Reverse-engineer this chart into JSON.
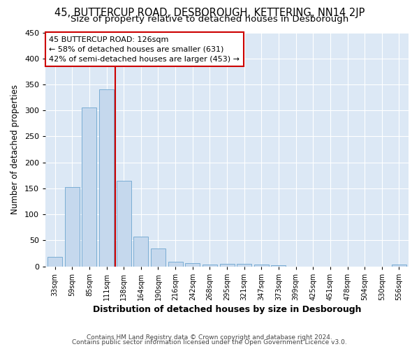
{
  "title1": "45, BUTTERCUP ROAD, DESBOROUGH, KETTERING, NN14 2JP",
  "title2": "Size of property relative to detached houses in Desborough",
  "xlabel": "Distribution of detached houses by size in Desborough",
  "ylabel": "Number of detached properties",
  "footer1": "Contains HM Land Registry data © Crown copyright and database right 2024.",
  "footer2": "Contains public sector information licensed under the Open Government Licence v3.0.",
  "categories": [
    "33sqm",
    "59sqm",
    "85sqm",
    "111sqm",
    "138sqm",
    "164sqm",
    "190sqm",
    "216sqm",
    "242sqm",
    "268sqm",
    "295sqm",
    "321sqm",
    "347sqm",
    "373sqm",
    "399sqm",
    "425sqm",
    "451sqm",
    "478sqm",
    "504sqm",
    "530sqm",
    "556sqm"
  ],
  "values": [
    18,
    152,
    306,
    341,
    165,
    57,
    34,
    9,
    6,
    3,
    5,
    5,
    4,
    2,
    0,
    0,
    0,
    0,
    0,
    0,
    4
  ],
  "bar_color": "#c5d8ed",
  "bar_edge_color": "#7aadd4",
  "vline_x": 3.5,
  "vline_color": "#cc0000",
  "annotation_line1": "45 BUTTERCUP ROAD: 126sqm",
  "annotation_line2": "← 58% of detached houses are smaller (631)",
  "annotation_line3": "42% of semi-detached houses are larger (453) →",
  "annotation_box_color": "#ffffff",
  "annotation_box_edge_color": "#cc0000",
  "ylim": [
    0,
    450
  ],
  "yticks": [
    0,
    50,
    100,
    150,
    200,
    250,
    300,
    350,
    400,
    450
  ],
  "grid_color": "#ffffff",
  "background_color": "#dce8f5",
  "title1_fontsize": 10.5,
  "title2_fontsize": 9.5,
  "xlabel_fontsize": 9,
  "ylabel_fontsize": 8.5,
  "footer_fontsize": 6.5
}
